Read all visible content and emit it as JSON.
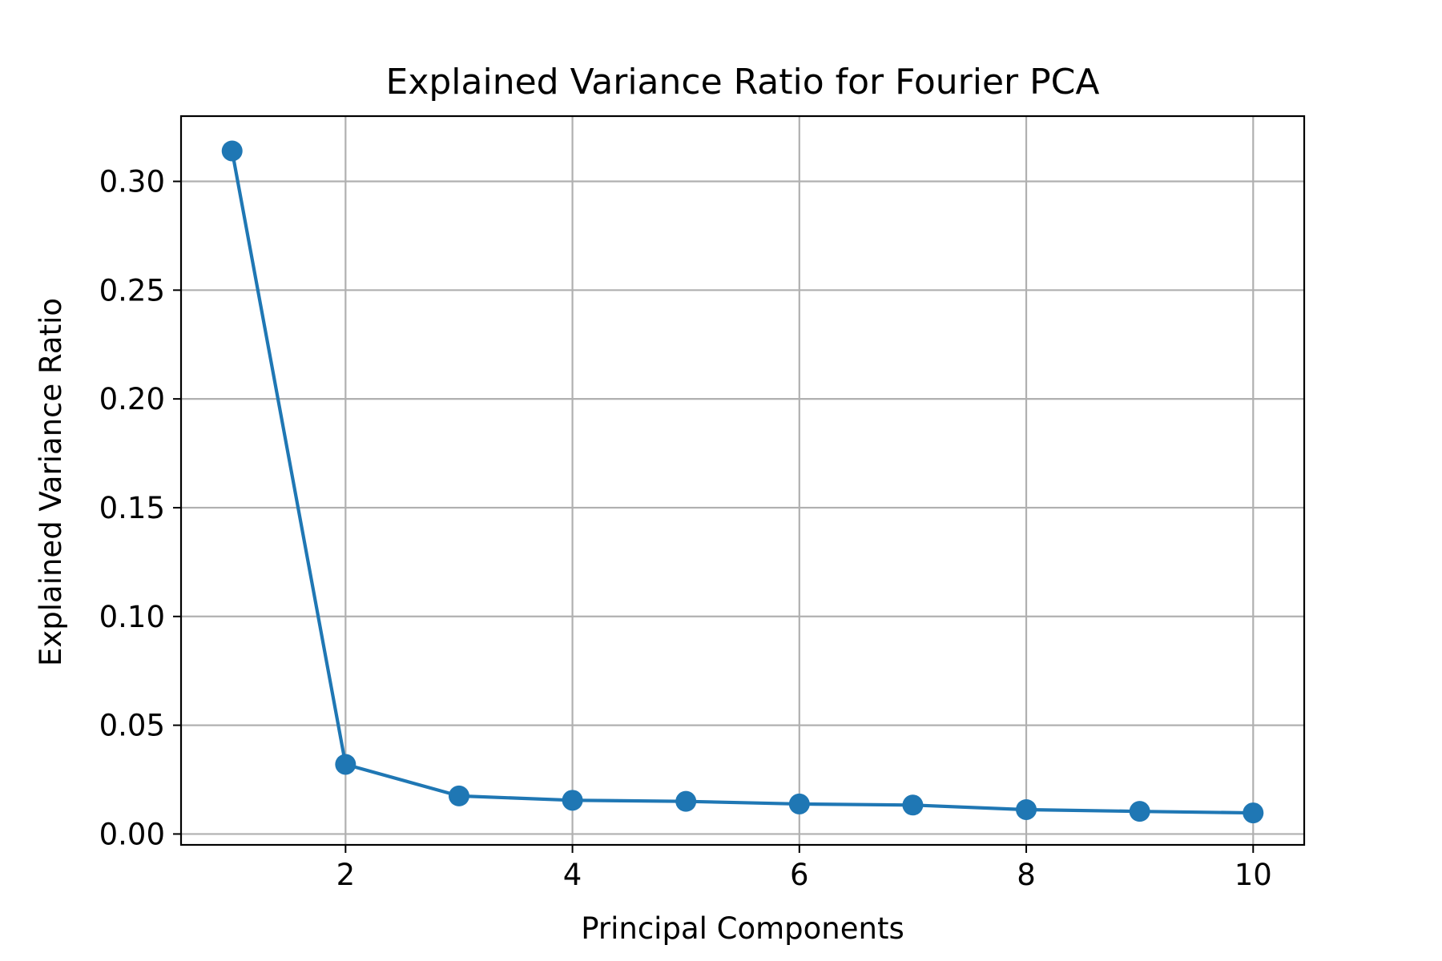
{
  "chart_data": {
    "type": "line",
    "title": "Explained Variance Ratio for Fourier PCA",
    "xlabel": "Principal Components",
    "ylabel": "Explained Variance Ratio",
    "x": [
      1,
      2,
      3,
      4,
      5,
      6,
      7,
      8,
      9,
      10
    ],
    "series": [
      {
        "values": [
          0.314,
          0.032,
          0.0175,
          0.0155,
          0.015,
          0.0138,
          0.0133,
          0.0112,
          0.0104,
          0.0097
        ]
      }
    ],
    "xlim": [
      0.55,
      10.45
    ],
    "ylim": [
      -0.005,
      0.33
    ],
    "xticks": [
      2,
      4,
      6,
      8,
      10
    ],
    "xtick_labels": [
      "2",
      "4",
      "6",
      "8",
      "10"
    ],
    "yticks": [
      0.0,
      0.05,
      0.1,
      0.15,
      0.2,
      0.25,
      0.3
    ],
    "ytick_labels": [
      "0.00",
      "0.05",
      "0.10",
      "0.15",
      "0.20",
      "0.25",
      "0.30"
    ],
    "grid": true,
    "marker": "circle",
    "line_color": "#1f77b4",
    "grid_color": "#b0b0b0"
  }
}
